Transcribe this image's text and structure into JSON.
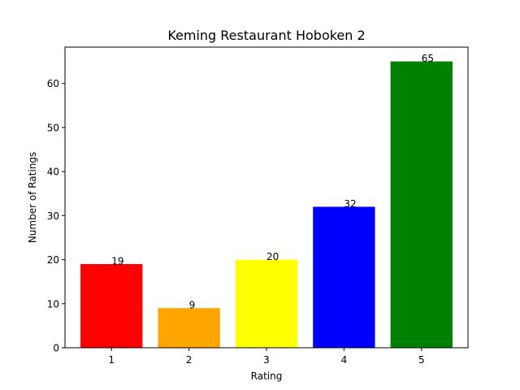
{
  "chart_data": {
    "type": "bar",
    "title": "Keming Restaurant Hoboken 2",
    "xlabel": "Rating",
    "ylabel": "Number of Ratings",
    "categories": [
      "1",
      "2",
      "3",
      "4",
      "5"
    ],
    "values": [
      19,
      9,
      20,
      32,
      65
    ],
    "value_labels": [
      "19",
      "9",
      "20",
      "32",
      "65"
    ],
    "colors": [
      "#ff0000",
      "#ffa500",
      "#ffff00",
      "#0000ff",
      "#008000"
    ],
    "ylim": [
      0,
      68.25
    ],
    "yticks": [
      0,
      10,
      20,
      30,
      40,
      50,
      60
    ],
    "ytick_labels": [
      "0",
      "10",
      "20",
      "30",
      "40",
      "50",
      "60"
    ],
    "grid": false,
    "legend": "none"
  }
}
